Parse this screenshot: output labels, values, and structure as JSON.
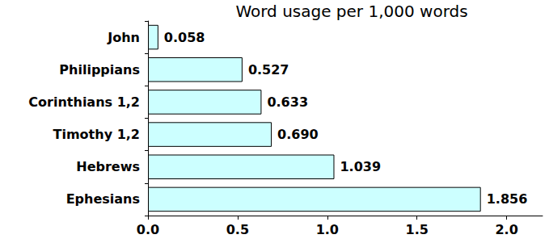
{
  "chart_data": {
    "type": "bar",
    "orientation": "horizontal",
    "title": "Word usage per 1,000 words",
    "categories": [
      "John",
      "Philippians",
      "Corinthians 1,2",
      "Timothy 1,2",
      "Hebrews",
      "Ephesians"
    ],
    "values": [
      0.058,
      0.527,
      0.633,
      0.69,
      1.039,
      1.856
    ],
    "value_labels": [
      "0.058",
      "0.527",
      "0.633",
      "0.690",
      "1.039",
      "1.856"
    ],
    "color": "#ccffff",
    "xlim": [
      0,
      2.2
    ],
    "xticks": [
      {
        "value": 0,
        "label": "0.0"
      },
      0.5,
      {
        "value": 1,
        "label": "1.0"
      },
      1.5,
      {
        "value": 2,
        "label": "2.0"
      }
    ],
    "grid": false,
    "data_labels": true
  }
}
